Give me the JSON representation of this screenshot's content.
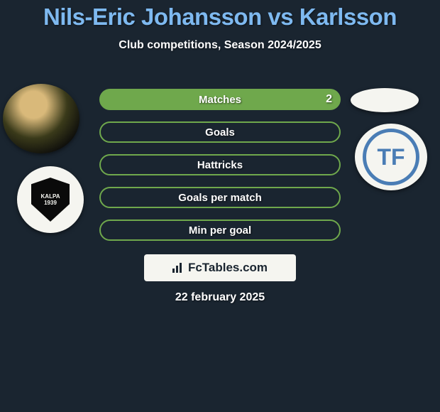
{
  "header": {
    "title": "Nils-Eric Johansson vs Karlsson",
    "subtitle": "Club competitions, Season 2024/2025"
  },
  "left_avatars": {
    "player_badge": "player-photo",
    "team_badge": {
      "name": "KALPA",
      "year": "1939"
    }
  },
  "right_avatars": {
    "blank_oval": "oval",
    "team_badge": {
      "name": "TRELLEBORGS FF",
      "letter": "TF"
    }
  },
  "stats": [
    {
      "label": "Matches",
      "value_right": "2",
      "filled": true
    },
    {
      "label": "Goals",
      "value_right": "",
      "filled": false
    },
    {
      "label": "Hattricks",
      "value_right": "",
      "filled": false
    },
    {
      "label": "Goals per match",
      "value_right": "",
      "filled": false
    },
    {
      "label": "Min per goal",
      "value_right": "",
      "filled": false
    }
  ],
  "branding": "FcTables.com",
  "date": "22 february 2025",
  "colors": {
    "background": "#1a2530",
    "title": "#7eb9f0",
    "accent": "#6fa84c",
    "white": "#ffffff",
    "light": "#f5f5f0",
    "blue_logo": "#4a7db5"
  }
}
